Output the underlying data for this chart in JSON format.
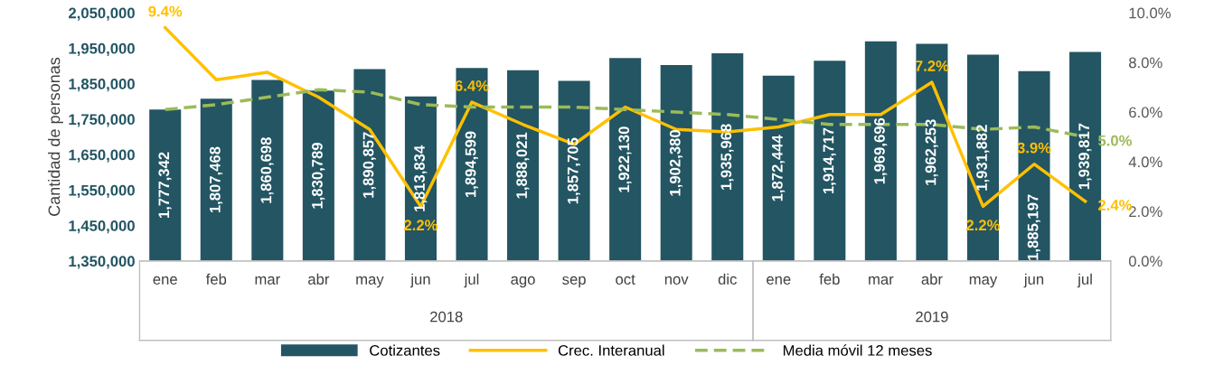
{
  "chart_data": {
    "type": "bar",
    "ylabel": "Cantidad de personas",
    "categories": [
      "ene",
      "feb",
      "mar",
      "abr",
      "may",
      "jun",
      "jul",
      "ago",
      "sep",
      "oct",
      "nov",
      "dic",
      "ene",
      "feb",
      "mar",
      "abr",
      "may",
      "jun",
      "jul"
    ],
    "annotations": [
      "2018",
      "2019"
    ],
    "ylim": [
      1350000,
      2050000
    ],
    "yticks": [
      {
        "value": 1350000,
        "label": "1,350,000"
      },
      {
        "value": 1450000,
        "label": "1,450,000"
      },
      {
        "value": 1550000,
        "label": "1,550,000"
      },
      {
        "value": 1650000,
        "label": "1,650,000"
      },
      {
        "value": 1750000,
        "label": "1,750,000"
      },
      {
        "value": 1850000,
        "label": "1,850,000"
      },
      {
        "value": 1950000,
        "label": "1,950,000"
      },
      {
        "value": 2050000,
        "label": "2,050,000"
      }
    ],
    "y2lim": [
      0,
      10
    ],
    "y2ticks": [
      {
        "value": 0,
        "label": "0.0%"
      },
      {
        "value": 2,
        "label": "2.0%"
      },
      {
        "value": 4,
        "label": "4.0%"
      },
      {
        "value": 6,
        "label": "6.0%"
      },
      {
        "value": 8,
        "label": "8.0%"
      },
      {
        "value": 10,
        "label": "10.0%"
      }
    ],
    "legend": "bottom",
    "grid": false,
    "series": [
      {
        "name": "Cotizantes",
        "type": "bar",
        "color": "#235563",
        "values": [
          1777342,
          1807468,
          1860698,
          1830789,
          1890857,
          1813834,
          1894599,
          1888021,
          1857705,
          1922130,
          1902380,
          1935968,
          1872444,
          1914717,
          1969696,
          1962253,
          1931882,
          1885197,
          1939817
        ],
        "value_labels": [
          "1,777,342",
          "1,807,468",
          "1,860,698",
          "1,830,789",
          "1,890,857",
          "1,813,834",
          "1,894,599",
          "1,888,021",
          "1,857,705",
          "1,922,130",
          "1,902,380",
          "1,935,968",
          "1,872,444",
          "1,914,717",
          "1,969,696",
          "1,962,253",
          "1,931,882",
          "1,885,197",
          "1,939,817"
        ]
      },
      {
        "name": "Crec. Interanual",
        "type": "line",
        "axis": "y2",
        "color": "#ffc000",
        "line_style": "solid",
        "values": [
          9.4,
          7.3,
          7.6,
          6.6,
          5.3,
          2.2,
          6.4,
          5.5,
          4.7,
          6.2,
          5.3,
          5.2,
          5.4,
          5.9,
          5.9,
          7.2,
          2.2,
          3.9,
          2.4
        ],
        "value_labels": [
          "9.4%",
          null,
          null,
          null,
          null,
          "2.2%",
          "6.4%",
          null,
          null,
          null,
          null,
          null,
          null,
          null,
          null,
          "7.2%",
          "2.2%",
          "3.9%",
          "2.4%"
        ]
      },
      {
        "name": "Media móvil 12 meses",
        "type": "line",
        "axis": "y2",
        "color": "#9bbb59",
        "line_style": "dashed",
        "values": [
          6.1,
          6.3,
          6.6,
          6.9,
          6.8,
          6.3,
          6.2,
          6.2,
          6.2,
          6.1,
          6.0,
          5.9,
          5.7,
          5.5,
          5.5,
          5.5,
          5.3,
          5.4,
          5.0
        ],
        "value_labels": [
          null,
          null,
          null,
          null,
          null,
          null,
          null,
          null,
          null,
          null,
          null,
          null,
          null,
          null,
          null,
          null,
          null,
          null,
          "5.0%"
        ]
      }
    ]
  }
}
